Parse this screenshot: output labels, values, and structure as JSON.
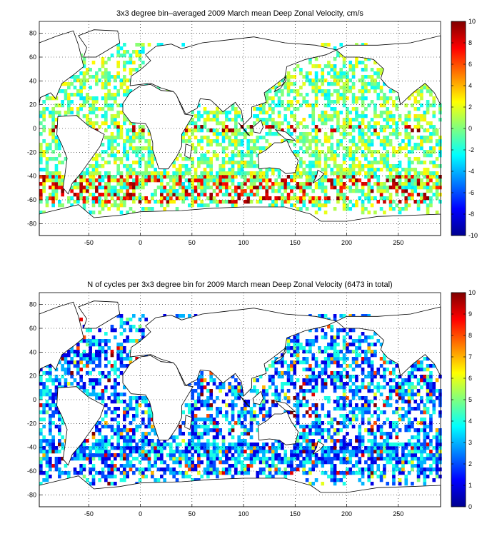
{
  "panels": [
    {
      "title": "3x3 degree bin–averaged 2009 March mean Deep Zonal Velocity, cm/s",
      "xlim": [
        -98,
        291
      ],
      "ylim": [
        -90,
        90
      ],
      "xticks": [
        -50,
        0,
        50,
        100,
        150,
        200,
        250
      ],
      "yticks": [
        -80,
        -60,
        -40,
        -20,
        0,
        20,
        40,
        60,
        80
      ],
      "colorbar": {
        "min": -10,
        "max": 10,
        "ticks": [
          -10,
          -8,
          -6,
          -4,
          -2,
          0,
          2,
          4,
          6,
          8,
          10
        ]
      },
      "variable": "velocity"
    },
    {
      "title": "N of cycles per 3x3 degree bin for 2009 March mean Deep Zonal Velocity (6473 in total)",
      "xlim": [
        -98,
        291
      ],
      "ylim": [
        -90,
        90
      ],
      "xticks": [
        -50,
        0,
        50,
        100,
        150,
        200,
        250
      ],
      "yticks": [
        -80,
        -60,
        -40,
        -20,
        0,
        20,
        40,
        60,
        80
      ],
      "colorbar": {
        "min": 0,
        "max": 10,
        "ticks": [
          0,
          1,
          2,
          3,
          4,
          5,
          6,
          7,
          8,
          9,
          10
        ]
      },
      "variable": "count"
    }
  ],
  "colormap": "jet",
  "map": {
    "type": "global ocean bin map",
    "bin_size_deg": 3,
    "grid": true
  }
}
